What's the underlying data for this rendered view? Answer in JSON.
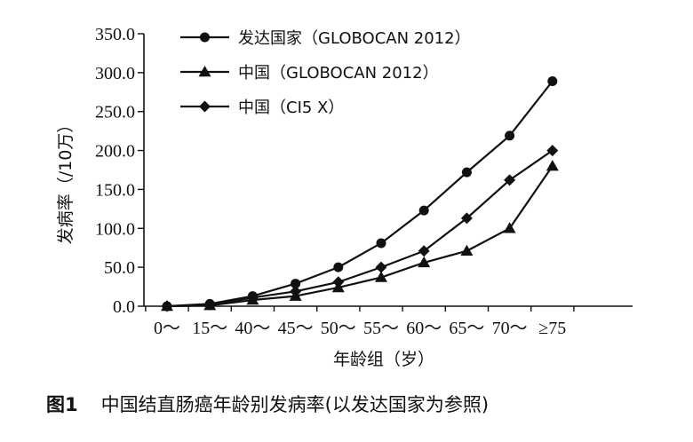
{
  "chart_data": {
    "type": "line",
    "categories": [
      "0～",
      "15～",
      "40～",
      "45～",
      "50～",
      "55～",
      "60～",
      "65～",
      "70～",
      "≥75"
    ],
    "xlabel": "年龄组（岁）",
    "ylabel": "发病率（/10万）",
    "ylim": [
      0,
      350
    ],
    "yticks": [
      "0.0",
      "50.0",
      "100.0",
      "150.0",
      "200.0",
      "250.0",
      "300.0",
      "350.0"
    ],
    "legend_position": "top-left",
    "grid": false,
    "series": [
      {
        "name": "发达国家（GLOBOCAN 2012）",
        "marker": "circle",
        "values": [
          0,
          3,
          13,
          29,
          50,
          81,
          123,
          172,
          219,
          289
        ]
      },
      {
        "name": "中国（GLOBOCAN 2012）",
        "marker": "triangle",
        "values": [
          0,
          1,
          8,
          13,
          24,
          37,
          56,
          71,
          100,
          180
        ]
      },
      {
        "name": "中国（CI5 X）",
        "marker": "diamond",
        "values": [
          0,
          2,
          11,
          19,
          31,
          50,
          71,
          113,
          162,
          200
        ]
      }
    ]
  },
  "caption": {
    "figure_number": "图1",
    "text": "中国结直肠癌年龄别发病率(以发达国家为参照)"
  }
}
